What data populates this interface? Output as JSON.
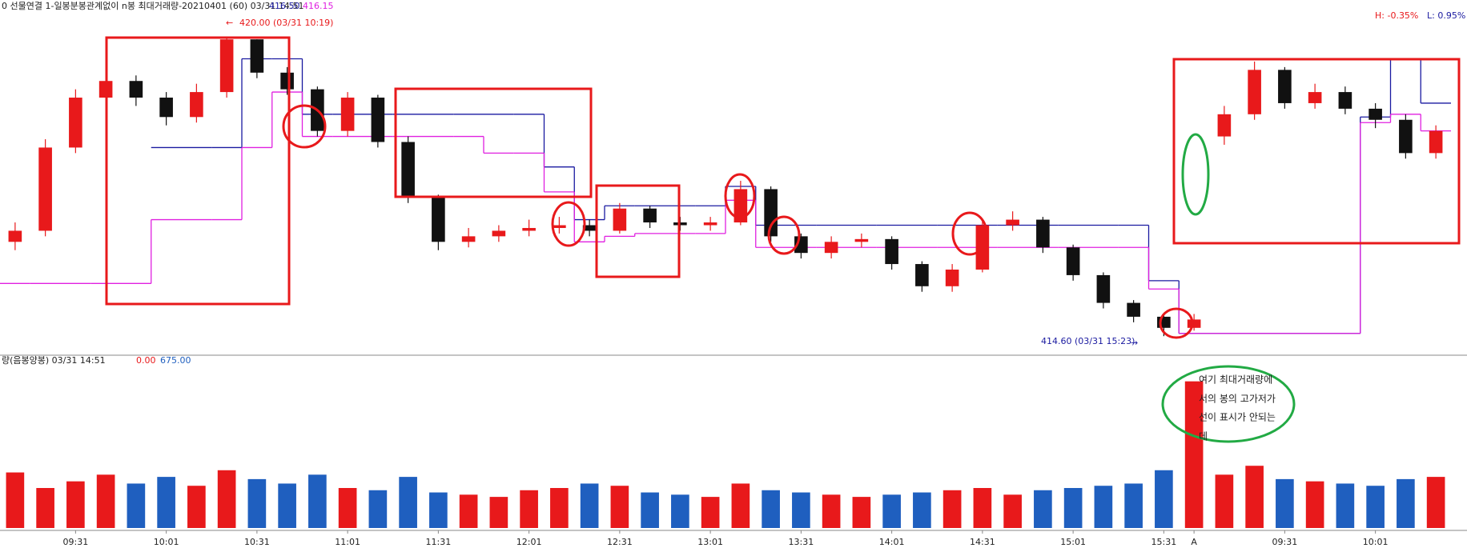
{
  "chart_data": [
    {
      "type": "candlestick",
      "title": "0 선물연결  1-일봉분봉관계없이 n봉 최대거래량-20210401  (60) 03/31 14:51",
      "readouts": [
        "416.50",
        "416.15"
      ],
      "range_labels": [
        "H: -0.35%",
        "L: 0.95%"
      ],
      "annotations": [
        "420.00 (03/31 10:19)",
        "414.60 (03/31 15:23)"
      ],
      "up_color": "#e8191b",
      "down_color": "#111111",
      "ylim": [
        414.3,
        420.4
      ],
      "open": [
        416.3,
        416.5,
        418.0,
        418.9,
        419.2,
        418.9,
        418.55,
        419.0,
        419.95,
        419.35,
        419.05,
        418.3,
        418.9,
        418.1,
        417.1,
        416.3,
        416.4,
        416.5,
        416.55,
        416.6,
        416.5,
        416.9,
        416.65,
        416.6,
        416.65,
        417.25,
        416.4,
        416.1,
        416.3,
        416.35,
        415.9,
        415.5,
        415.8,
        416.6,
        416.7,
        416.2,
        415.7,
        415.2,
        414.95,
        414.75,
        418.2,
        418.6,
        419.4,
        418.8,
        419.0,
        418.7,
        418.5,
        417.9
      ],
      "high": [
        416.65,
        418.15,
        419.05,
        419.35,
        419.3,
        419.0,
        419.15,
        420.0,
        419.95,
        419.45,
        419.1,
        419.0,
        418.95,
        418.2,
        417.15,
        416.55,
        416.6,
        416.7,
        416.75,
        416.7,
        417.0,
        416.95,
        416.75,
        416.75,
        417.4,
        417.3,
        416.45,
        416.4,
        416.45,
        416.4,
        415.95,
        415.9,
        416.7,
        416.85,
        416.75,
        416.25,
        415.75,
        415.25,
        415.0,
        415.0,
        418.75,
        419.55,
        419.45,
        419.15,
        419.1,
        418.8,
        418.6,
        418.4
      ],
      "low": [
        416.15,
        416.4,
        417.9,
        418.8,
        418.75,
        418.4,
        418.45,
        418.9,
        419.25,
        418.95,
        418.2,
        418.2,
        418.0,
        417.0,
        416.15,
        416.2,
        416.3,
        416.4,
        416.45,
        416.4,
        416.45,
        416.55,
        416.5,
        416.5,
        416.6,
        416.3,
        416.0,
        416.0,
        416.2,
        415.8,
        415.4,
        415.4,
        415.75,
        416.5,
        416.1,
        415.6,
        415.1,
        414.85,
        414.6,
        414.7,
        418.05,
        418.5,
        418.7,
        418.7,
        418.6,
        418.35,
        417.8,
        417.8
      ],
      "close": [
        416.5,
        418.0,
        418.9,
        419.2,
        418.9,
        418.55,
        419.0,
        419.95,
        419.35,
        419.05,
        418.3,
        418.9,
        418.1,
        417.1,
        416.3,
        416.4,
        416.5,
        416.55,
        416.6,
        416.5,
        416.9,
        416.65,
        416.6,
        416.65,
        417.25,
        416.4,
        416.1,
        416.3,
        416.35,
        415.9,
        415.5,
        415.8,
        416.6,
        416.7,
        416.2,
        415.7,
        415.2,
        414.95,
        414.75,
        414.9,
        418.6,
        419.4,
        418.8,
        419.0,
        418.7,
        418.5,
        417.9,
        418.3
      ],
      "series": [
        {
          "color": "#1a1aa0",
          "values": [
            null,
            null,
            null,
            null,
            null,
            418.0,
            418.0,
            418.0,
            419.6,
            419.6,
            418.6,
            418.6,
            418.6,
            418.6,
            418.6,
            418.6,
            418.6,
            418.6,
            417.65,
            416.7,
            416.95,
            416.95,
            416.95,
            416.95,
            417.3,
            416.6,
            416.6,
            416.6,
            416.6,
            416.6,
            416.6,
            416.6,
            416.6,
            416.6,
            416.6,
            416.6,
            416.6,
            416.6,
            415.6,
            414.65,
            414.65,
            414.65,
            414.65,
            414.65,
            414.65,
            418.55,
            419.6,
            418.8
          ]
        },
        {
          "color": "#e020e0",
          "values": [
            415.55,
            415.55,
            415.55,
            415.55,
            415.55,
            416.7,
            416.7,
            416.7,
            418.0,
            419.0,
            418.2,
            418.2,
            418.2,
            418.2,
            418.2,
            418.2,
            417.9,
            417.9,
            417.2,
            416.3,
            416.4,
            416.45,
            416.45,
            416.45,
            417.05,
            416.2,
            416.2,
            416.2,
            416.2,
            416.2,
            416.2,
            416.2,
            416.2,
            416.2,
            416.2,
            416.2,
            416.2,
            416.2,
            415.45,
            414.65,
            414.65,
            414.65,
            414.65,
            414.65,
            414.65,
            418.45,
            418.6,
            418.3
          ]
        }
      ]
    },
    {
      "type": "bar",
      "title": "량(음봉양봉) 03/31 14:51",
      "readouts": [
        "0.00",
        "675.00"
      ],
      "ylim": [
        0,
        720
      ],
      "values": [
        250,
        180,
        210,
        240,
        200,
        230,
        190,
        260,
        220,
        200,
        240,
        180,
        170,
        230,
        160,
        150,
        140,
        170,
        180,
        200,
        190,
        160,
        150,
        140,
        200,
        170,
        160,
        150,
        140,
        150,
        160,
        170,
        180,
        150,
        170,
        180,
        190,
        200,
        260,
        660,
        240,
        280,
        220,
        210,
        200,
        190,
        220,
        230
      ],
      "up_color": "#e8191b",
      "down_color": "#1f5fbf",
      "categories": [
        null,
        null,
        "09:31",
        null,
        null,
        "10:01",
        null,
        null,
        "10:31",
        null,
        null,
        "11:01",
        null,
        null,
        "11:31",
        null,
        null,
        "12:01",
        null,
        null,
        "12:31",
        null,
        null,
        "13:01",
        null,
        null,
        "13:31",
        null,
        null,
        "14:01",
        null,
        null,
        "14:31",
        null,
        null,
        "15:01",
        null,
        null,
        "15:31",
        "A",
        null,
        null,
        "09:31",
        null,
        null,
        "10:01",
        null,
        null
      ]
    }
  ],
  "note": {
    "lines": [
      "여기 최대거래량에",
      "서의 봉의 고가저가",
      "선이 표시가 안되는",
      "데"
    ]
  }
}
